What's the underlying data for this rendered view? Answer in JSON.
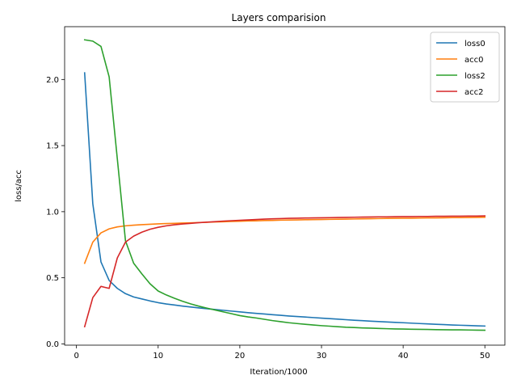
{
  "chart_data": {
    "type": "line",
    "title": "Layers comparision",
    "xlabel": "Iteration/1000",
    "ylabel": "loss/acc",
    "xlim": [
      -1.45,
      52.45
    ],
    "ylim": [
      -0.0096,
      2.3994
    ],
    "xticks": [
      0,
      10,
      20,
      30,
      40,
      50
    ],
    "yticks": [
      0.0,
      0.5,
      1.0,
      1.5,
      2.0
    ],
    "xtick_labels": [
      "0",
      "10",
      "20",
      "30",
      "40",
      "50"
    ],
    "ytick_labels": [
      "0.0",
      "0.5",
      "1.0",
      "1.5",
      "2.0"
    ],
    "grid": false,
    "legend_position": "top-right",
    "x": [
      1,
      2,
      3,
      4,
      5,
      6,
      7,
      8,
      9,
      10,
      11,
      12,
      13,
      14,
      15,
      16,
      17,
      18,
      19,
      20,
      21,
      22,
      23,
      24,
      25,
      26,
      27,
      28,
      29,
      30,
      31,
      32,
      33,
      34,
      35,
      36,
      37,
      38,
      39,
      40,
      41,
      42,
      43,
      44,
      45,
      46,
      47,
      48,
      49,
      50
    ],
    "series": [
      {
        "name": "loss0",
        "color": "#1f77b4",
        "values": [
          2.05,
          1.06,
          0.62,
          0.48,
          0.42,
          0.38,
          0.355,
          0.34,
          0.325,
          0.312,
          0.302,
          0.294,
          0.286,
          0.279,
          0.272,
          0.266,
          0.26,
          0.254,
          0.248,
          0.242,
          0.236,
          0.231,
          0.226,
          0.221,
          0.216,
          0.211,
          0.207,
          0.203,
          0.199,
          0.195,
          0.191,
          0.187,
          0.183,
          0.179,
          0.176,
          0.172,
          0.169,
          0.166,
          0.163,
          0.16,
          0.157,
          0.154,
          0.151,
          0.148,
          0.146,
          0.143,
          0.141,
          0.139,
          0.137,
          0.135
        ]
      },
      {
        "name": "acc0",
        "color": "#ff7f0e",
        "values": [
          0.61,
          0.77,
          0.84,
          0.87,
          0.885,
          0.893,
          0.898,
          0.902,
          0.905,
          0.908,
          0.91,
          0.912,
          0.914,
          0.916,
          0.918,
          0.92,
          0.922,
          0.924,
          0.926,
          0.928,
          0.93,
          0.931,
          0.933,
          0.934,
          0.936,
          0.937,
          0.938,
          0.939,
          0.94,
          0.941,
          0.942,
          0.943,
          0.944,
          0.945,
          0.946,
          0.947,
          0.948,
          0.949,
          0.95,
          0.951,
          0.951,
          0.952,
          0.953,
          0.953,
          0.954,
          0.955,
          0.955,
          0.956,
          0.957,
          0.958
        ]
      },
      {
        "name": "loss2",
        "color": "#2ca02c",
        "values": [
          2.3,
          2.29,
          2.25,
          2.02,
          1.4,
          0.78,
          0.61,
          0.53,
          0.455,
          0.4,
          0.37,
          0.345,
          0.322,
          0.302,
          0.285,
          0.27,
          0.256,
          0.242,
          0.228,
          0.214,
          0.204,
          0.196,
          0.186,
          0.176,
          0.168,
          0.16,
          0.154,
          0.148,
          0.143,
          0.138,
          0.134,
          0.13,
          0.126,
          0.124,
          0.121,
          0.119,
          0.117,
          0.115,
          0.113,
          0.112,
          0.111,
          0.11,
          0.109,
          0.108,
          0.107,
          0.106,
          0.106,
          0.105,
          0.104,
          0.103
        ]
      },
      {
        "name": "acc2",
        "color": "#d62728",
        "values": [
          0.13,
          0.35,
          0.435,
          0.42,
          0.65,
          0.77,
          0.815,
          0.845,
          0.867,
          0.882,
          0.893,
          0.901,
          0.907,
          0.912,
          0.917,
          0.921,
          0.925,
          0.929,
          0.932,
          0.935,
          0.938,
          0.941,
          0.944,
          0.946,
          0.948,
          0.95,
          0.951,
          0.952,
          0.953,
          0.954,
          0.955,
          0.956,
          0.957,
          0.958,
          0.959,
          0.96,
          0.961,
          0.961,
          0.962,
          0.963,
          0.963,
          0.964,
          0.964,
          0.965,
          0.965,
          0.966,
          0.966,
          0.967,
          0.967,
          0.968
        ]
      }
    ]
  }
}
